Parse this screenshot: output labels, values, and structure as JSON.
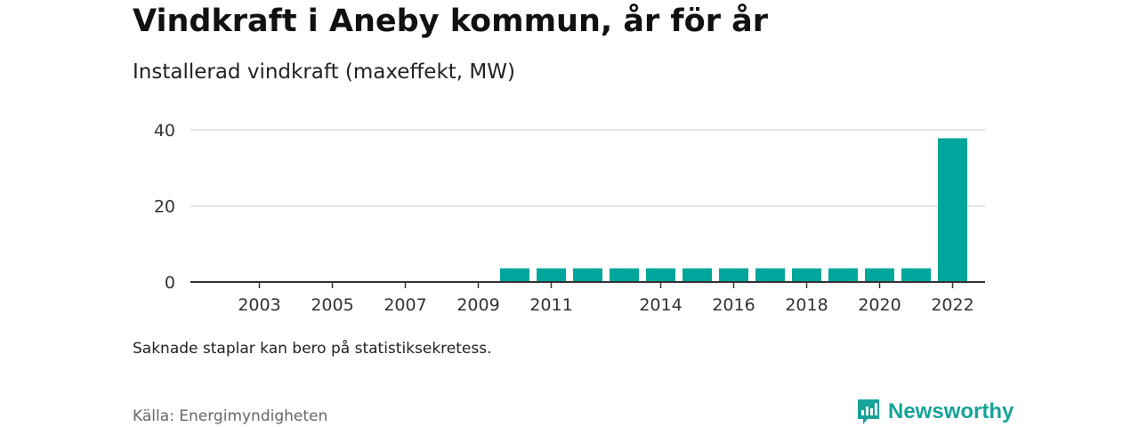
{
  "title": "Vindkraft i Aneby kommun, år för år",
  "subtitle": "Installerad vindkraft (maxeffekt, MW)",
  "note": "Saknade staplar kan bero på statistiksekretess.",
  "source": "Källa: Energimyndigheten",
  "brand": {
    "name": "Newsworthy",
    "icon": "bar-chart-speech-bubble-icon",
    "color": "#17a39a"
  },
  "chart_data": {
    "type": "bar",
    "categories": [
      "2002",
      "2003",
      "2004",
      "2005",
      "2006",
      "2007",
      "2008",
      "2009",
      "2010",
      "2011",
      "2012",
      "2013",
      "2014",
      "2015",
      "2016",
      "2017",
      "2018",
      "2019",
      "2020",
      "2021",
      "2022"
    ],
    "values": [
      null,
      null,
      null,
      null,
      null,
      null,
      null,
      null,
      3.6,
      3.6,
      3.6,
      3.6,
      3.6,
      3.6,
      3.6,
      3.6,
      3.6,
      3.6,
      3.6,
      3.6,
      37.8
    ],
    "x_tick_labels": [
      "2003",
      "2005",
      "2007",
      "2009",
      "2011",
      "2014",
      "2016",
      "2018",
      "2020",
      "2022"
    ],
    "y_ticks": [
      0,
      20,
      40
    ],
    "ylim": [
      0,
      40
    ],
    "xlabel": "",
    "ylabel": "",
    "grid": true,
    "legend": "none",
    "bar_color": "#00a59b"
  }
}
